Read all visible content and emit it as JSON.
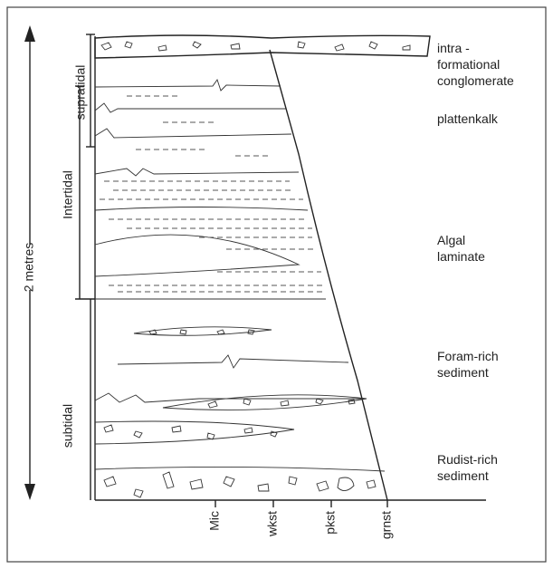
{
  "scale": {
    "label": "2 metres"
  },
  "zones": {
    "supratidal": "supratidal",
    "intertidal": "Intertidal",
    "subtidal": "subtidal"
  },
  "facies": {
    "conglomerate": [
      "intra -",
      "formational",
      "conglomerate"
    ],
    "plattenkalk": [
      "plattenkalk"
    ],
    "algal": [
      "Algal",
      "laminate"
    ],
    "foram": [
      "Foram-rich",
      "sediment"
    ],
    "rudist": [
      "Rudist-rich",
      "sediment"
    ]
  },
  "texture_axis": [
    "Mic",
    "wkst",
    "pkst",
    "grnst"
  ]
}
